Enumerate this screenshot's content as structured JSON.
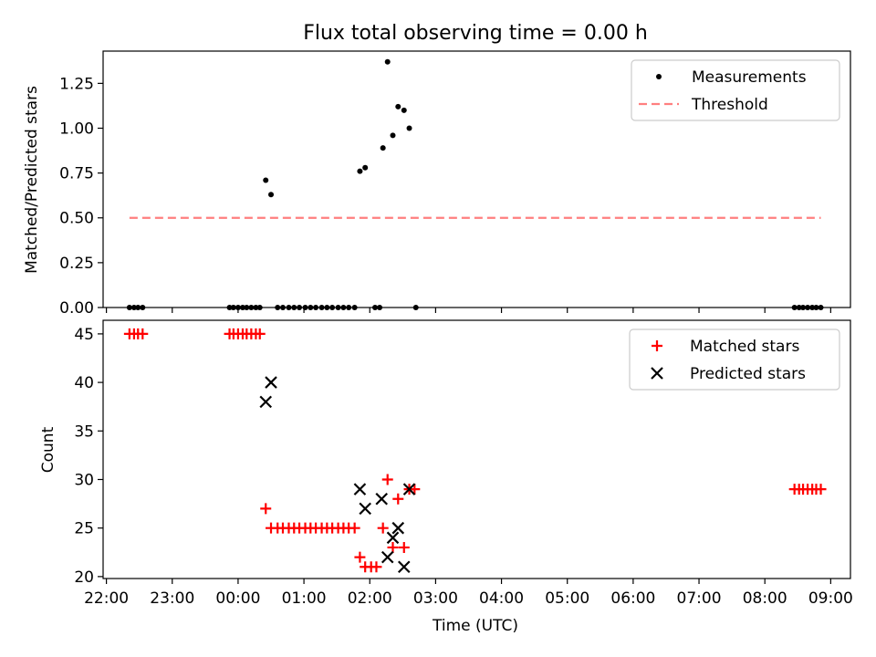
{
  "title": "Flux total observing time = 0.00 h",
  "chart_data": [
    {
      "type": "scatter",
      "ylabel": "Matched/Predicted stars",
      "xlabel": "",
      "xlim": [
        "22:00",
        "09:00"
      ],
      "xlim_hours": [
        21.95,
        33.3
      ],
      "ylim": [
        0,
        1.43
      ],
      "yticks": [
        0.0,
        0.25,
        0.5,
        0.75,
        1.0,
        1.25
      ],
      "ytick_labels": [
        "0.00",
        "0.25",
        "0.50",
        "0.75",
        "1.00",
        "1.25"
      ],
      "legend": {
        "position": "top-right",
        "entries": [
          {
            "label": "Measurements",
            "marker": "dot",
            "color": "#000000"
          },
          {
            "label": "Threshold",
            "marker": "dashed-line",
            "color": "#ff7f7f"
          }
        ]
      },
      "series": [
        {
          "name": "Measurements",
          "color": "#000000",
          "points": [
            [
              22.35,
              0
            ],
            [
              22.42,
              0
            ],
            [
              22.48,
              0
            ],
            [
              22.55,
              0
            ],
            [
              23.87,
              0
            ],
            [
              23.93,
              0
            ],
            [
              24.0,
              0
            ],
            [
              24.07,
              0
            ],
            [
              24.13,
              0
            ],
            [
              24.2,
              0
            ],
            [
              24.27,
              0
            ],
            [
              24.33,
              0
            ],
            [
              24.42,
              0.71
            ],
            [
              24.5,
              0.63
            ],
            [
              24.6,
              0
            ],
            [
              24.68,
              0
            ],
            [
              24.77,
              0
            ],
            [
              24.85,
              0
            ],
            [
              24.93,
              0
            ],
            [
              25.02,
              0
            ],
            [
              25.1,
              0
            ],
            [
              25.18,
              0
            ],
            [
              25.27,
              0
            ],
            [
              25.35,
              0
            ],
            [
              25.43,
              0
            ],
            [
              25.52,
              0
            ],
            [
              25.6,
              0
            ],
            [
              25.68,
              0
            ],
            [
              25.77,
              0
            ],
            [
              25.85,
              0.76
            ],
            [
              25.93,
              0.78
            ],
            [
              26.08,
              0
            ],
            [
              26.15,
              0
            ],
            [
              26.2,
              0.89
            ],
            [
              26.27,
              1.37
            ],
            [
              26.35,
              0.96
            ],
            [
              26.43,
              1.12
            ],
            [
              26.52,
              1.1
            ],
            [
              26.6,
              1.0
            ],
            [
              26.7,
              0
            ],
            [
              32.45,
              0
            ],
            [
              32.52,
              0
            ],
            [
              32.58,
              0
            ],
            [
              32.65,
              0
            ],
            [
              32.72,
              0
            ],
            [
              32.78,
              0
            ],
            [
              32.85,
              0
            ]
          ]
        },
        {
          "name": "Threshold",
          "color": "#ff7f7f",
          "line": [
            [
              22.35,
              0.5
            ],
            [
              32.85,
              0.5
            ]
          ]
        }
      ]
    },
    {
      "type": "scatter",
      "ylabel": "Count",
      "xlabel": "Time (UTC)",
      "xlim": [
        "22:00",
        "09:00"
      ],
      "xlim_hours": [
        21.95,
        33.3
      ],
      "ylim": [
        19.8,
        46.4
      ],
      "yticks": [
        20,
        25,
        30,
        35,
        40,
        45
      ],
      "ytick_labels": [
        "20",
        "25",
        "30",
        "35",
        "40",
        "45"
      ],
      "xtick_labels": [
        "22:00",
        "23:00",
        "00:00",
        "01:00",
        "02:00",
        "03:00",
        "04:00",
        "05:00",
        "06:00",
        "07:00",
        "08:00",
        "09:00"
      ],
      "xtick_hours": [
        22,
        23,
        24,
        25,
        26,
        27,
        28,
        29,
        30,
        31,
        32,
        33
      ],
      "legend": {
        "position": "top-right",
        "entries": [
          {
            "label": "Matched stars",
            "marker": "plus",
            "color": "#ff0000"
          },
          {
            "label": "Predicted stars",
            "marker": "x",
            "color": "#000000"
          }
        ]
      },
      "series": [
        {
          "name": "Matched stars",
          "color": "#ff0000",
          "points": [
            [
              22.35,
              45
            ],
            [
              22.42,
              45
            ],
            [
              22.48,
              45
            ],
            [
              22.55,
              45
            ],
            [
              23.87,
              45
            ],
            [
              23.93,
              45
            ],
            [
              24.0,
              45
            ],
            [
              24.07,
              45
            ],
            [
              24.13,
              45
            ],
            [
              24.2,
              45
            ],
            [
              24.27,
              45
            ],
            [
              24.33,
              45
            ],
            [
              24.42,
              27
            ],
            [
              24.5,
              25
            ],
            [
              24.6,
              25
            ],
            [
              24.68,
              25
            ],
            [
              24.77,
              25
            ],
            [
              24.85,
              25
            ],
            [
              24.93,
              25
            ],
            [
              25.02,
              25
            ],
            [
              25.1,
              25
            ],
            [
              25.18,
              25
            ],
            [
              25.27,
              25
            ],
            [
              25.35,
              25
            ],
            [
              25.43,
              25
            ],
            [
              25.52,
              25
            ],
            [
              25.6,
              25
            ],
            [
              25.68,
              25
            ],
            [
              25.77,
              25
            ],
            [
              25.85,
              22
            ],
            [
              25.93,
              21
            ],
            [
              26.02,
              21
            ],
            [
              26.1,
              21
            ],
            [
              26.2,
              25
            ],
            [
              26.27,
              30
            ],
            [
              26.35,
              23
            ],
            [
              26.43,
              28
            ],
            [
              26.52,
              23
            ],
            [
              26.6,
              29
            ],
            [
              26.68,
              29
            ],
            [
              32.45,
              29
            ],
            [
              32.52,
              29
            ],
            [
              32.58,
              29
            ],
            [
              32.65,
              29
            ],
            [
              32.72,
              29
            ],
            [
              32.78,
              29
            ],
            [
              32.85,
              29
            ]
          ]
        },
        {
          "name": "Predicted stars",
          "color": "#000000",
          "points": [
            [
              24.42,
              38
            ],
            [
              24.5,
              40
            ],
            [
              25.85,
              29
            ],
            [
              25.93,
              27
            ],
            [
              26.18,
              28
            ],
            [
              26.27,
              22
            ],
            [
              26.35,
              24
            ],
            [
              26.43,
              25
            ],
            [
              26.52,
              21
            ],
            [
              26.6,
              29
            ]
          ]
        }
      ]
    }
  ]
}
